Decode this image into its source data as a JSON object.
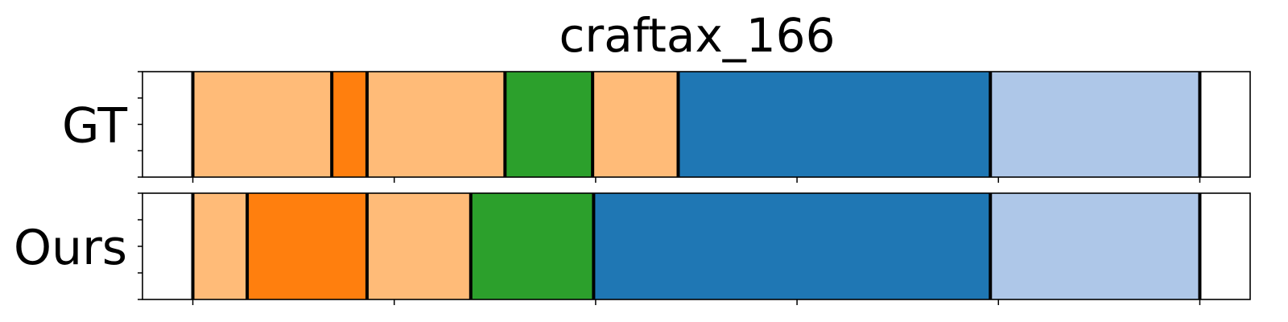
{
  "chart_data": {
    "type": "segmentation-timeline",
    "title": "craftax_166",
    "xlim": [
      0,
      1100
    ],
    "x_ticks": [
      50,
      250,
      450,
      650,
      850,
      1050
    ],
    "rows": [
      {
        "label": "GT",
        "segments": [
          {
            "start": 50,
            "end": 188,
            "color": "#ffbb78"
          },
          {
            "start": 188,
            "end": 223,
            "color": "#ff7f0e"
          },
          {
            "start": 223,
            "end": 360,
            "color": "#ffbb78"
          },
          {
            "start": 360,
            "end": 447,
            "color": "#2ca02c"
          },
          {
            "start": 447,
            "end": 532,
            "color": "#ffbb78"
          },
          {
            "start": 532,
            "end": 842,
            "color": "#1f77b4"
          },
          {
            "start": 842,
            "end": 1050,
            "color": "#aec7e8"
          }
        ]
      },
      {
        "label": "Ours",
        "segments": [
          {
            "start": 50,
            "end": 104,
            "color": "#ffbb78"
          },
          {
            "start": 104,
            "end": 223,
            "color": "#ff7f0e"
          },
          {
            "start": 223,
            "end": 326,
            "color": "#ffbb78"
          },
          {
            "start": 326,
            "end": 448,
            "color": "#2ca02c"
          },
          {
            "start": 448,
            "end": 842,
            "color": "#1f77b4"
          },
          {
            "start": 842,
            "end": 1050,
            "color": "#aec7e8"
          }
        ]
      }
    ]
  }
}
